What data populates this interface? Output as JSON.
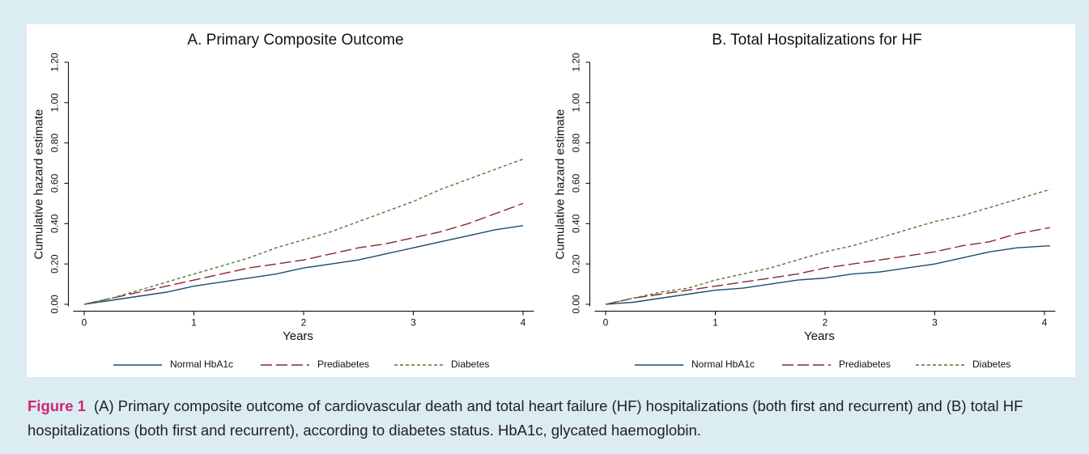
{
  "figure_label": "Figure 1",
  "caption": "(A) Primary composite outcome of cardiovascular death and total heart failure (HF) hospitalizations (both first and recurrent) and (B) total HF hospitalizations (both first and recurrent), according to diabetes status. HbA1c, glycated haemoglobin.",
  "chart_data": [
    {
      "type": "line",
      "title": "A. Primary Composite Outcome",
      "x_label": "Years",
      "y_label": "Cumulative hazard estimate",
      "x": [
        0,
        0.25,
        0.5,
        0.75,
        1,
        1.25,
        1.5,
        1.75,
        2,
        2.25,
        2.5,
        2.75,
        3,
        3.25,
        3.5,
        3.75,
        4
      ],
      "xlim": [
        -0.1,
        4.1
      ],
      "xticks": [
        0,
        1,
        2,
        3,
        4
      ],
      "ylim": [
        -0.01,
        1.2
      ],
      "yticks": [
        {
          "value": 0,
          "label": "0.00"
        },
        {
          "value": 0.2,
          "label": "0.20"
        },
        {
          "value": 0.4,
          "label": "0.40"
        },
        {
          "value": 0.6,
          "label": "0.60"
        },
        {
          "value": 0.8,
          "label": "0.80"
        },
        {
          "value": 1,
          "label": "1.00"
        },
        {
          "value": 1.2,
          "label": "1.20"
        }
      ],
      "grid": false,
      "legend": "bottom",
      "series": [
        {
          "name": "Normal HbA1c",
          "color": "#1f4a6e",
          "dash": "solid",
          "values": [
            0,
            0.02,
            0.04,
            0.06,
            0.09,
            0.11,
            0.13,
            0.15,
            0.18,
            0.2,
            0.22,
            0.25,
            0.28,
            0.31,
            0.34,
            0.37,
            0.39
          ]
        },
        {
          "name": "Prediabetes",
          "color": "#8e2433",
          "dash": "long",
          "values": [
            0,
            0.03,
            0.06,
            0.09,
            0.12,
            0.15,
            0.18,
            0.2,
            0.22,
            0.25,
            0.28,
            0.3,
            0.33,
            0.36,
            0.4,
            0.45,
            0.5
          ]
        },
        {
          "name": "Diabetes",
          "color": "#4d7a34",
          "dash": "short",
          "values": [
            0,
            0.03,
            0.07,
            0.11,
            0.15,
            0.19,
            0.23,
            0.28,
            0.32,
            0.36,
            0.41,
            0.46,
            0.51,
            0.57,
            0.62,
            0.67,
            0.72
          ]
        }
      ]
    },
    {
      "type": "line",
      "title": "B. Total Hospitalizations for HF",
      "x_label": "Years",
      "y_label": "Cumulative hazard estimate",
      "x": [
        0,
        0.25,
        0.5,
        0.75,
        1,
        1.25,
        1.5,
        1.75,
        2,
        2.25,
        2.5,
        2.75,
        3,
        3.25,
        3.5,
        3.75,
        4.05
      ],
      "xlim": [
        -0.1,
        4.1
      ],
      "xticks": [
        0,
        1,
        2,
        3,
        4
      ],
      "ylim": [
        -0.01,
        1.2
      ],
      "yticks": [
        {
          "value": 0,
          "label": "0.00"
        },
        {
          "value": 0.2,
          "label": "0.20"
        },
        {
          "value": 0.4,
          "label": "0.40"
        },
        {
          "value": 0.6,
          "label": "0.60"
        },
        {
          "value": 0.8,
          "label": "0.80"
        },
        {
          "value": 1,
          "label": "1.00"
        },
        {
          "value": 1.2,
          "label": "1.20"
        }
      ],
      "grid": false,
      "legend": "bottom",
      "series": [
        {
          "name": "Normal HbA1c",
          "color": "#1f4a6e",
          "dash": "solid",
          "values": [
            0,
            0.01,
            0.03,
            0.05,
            0.07,
            0.08,
            0.1,
            0.12,
            0.13,
            0.15,
            0.16,
            0.18,
            0.2,
            0.23,
            0.26,
            0.28,
            0.29
          ]
        },
        {
          "name": "Prediabetes",
          "color": "#8e2433",
          "dash": "long",
          "values": [
            0,
            0.03,
            0.05,
            0.07,
            0.09,
            0.11,
            0.13,
            0.15,
            0.18,
            0.2,
            0.22,
            0.24,
            0.26,
            0.29,
            0.31,
            0.35,
            0.38
          ]
        },
        {
          "name": "Diabetes",
          "color": "#4d7a34",
          "dash": "short",
          "values": [
            0,
            0.03,
            0.06,
            0.08,
            0.12,
            0.15,
            0.18,
            0.22,
            0.26,
            0.29,
            0.33,
            0.37,
            0.41,
            0.44,
            0.48,
            0.52,
            0.57
          ]
        }
      ]
    }
  ]
}
